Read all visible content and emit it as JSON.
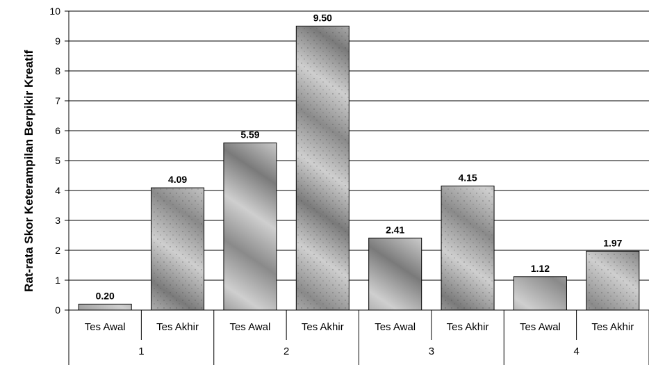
{
  "chart_data": {
    "type": "bar",
    "ylabel": "Rat-rata Skor Keterampilan Berpikir Kreatif",
    "ylim": [
      0,
      10
    ],
    "yticks": [
      0,
      1,
      2,
      3,
      4,
      5,
      6,
      7,
      8,
      9,
      10
    ],
    "grid": true,
    "groups": [
      "1",
      "2",
      "3",
      "4"
    ],
    "categories": [
      "Tes Awal",
      "Tes Akhir",
      "Tes Awal",
      "Tes Akhir",
      "Tes Awal",
      "Tes Akhir",
      "Tes Awal",
      "Tes Akhir"
    ],
    "values": [
      0.2,
      4.09,
      5.59,
      9.5,
      2.41,
      4.15,
      1.12,
      1.97
    ],
    "value_labels": [
      "0.20",
      "4.09",
      "5.59",
      "9.50",
      "2.41",
      "4.15",
      "1.12",
      "1.97"
    ],
    "colors": {
      "bar": "#9a9a9a",
      "bar_light": "#d4d4d4",
      "bar_dark": "#6e6e6e",
      "grid": "#000000"
    }
  }
}
